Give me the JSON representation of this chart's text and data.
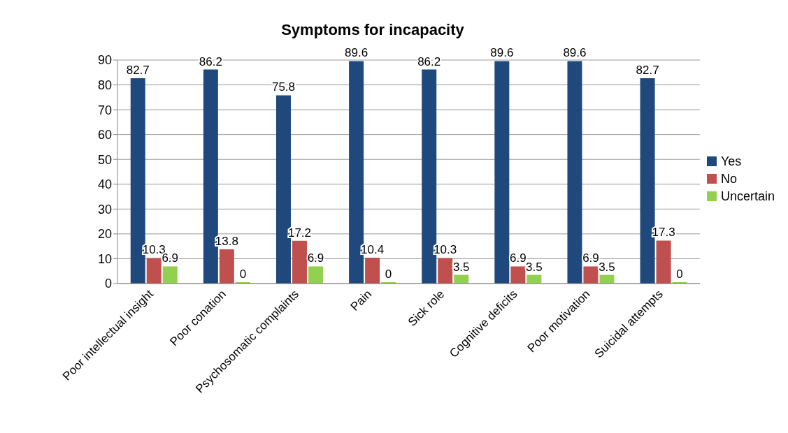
{
  "chart_data": {
    "type": "bar",
    "title": "Symptoms for incapacity",
    "categories": [
      "Poor intellectual insight",
      "Poor conation",
      "Psychosomatic complaints",
      "Pain",
      "Sick role",
      "Cognitive deficits",
      "Poor motivation",
      "Suicidal attempts"
    ],
    "series": [
      {
        "name": "Yes",
        "color": "#1f497d",
        "values": [
          82.7,
          86.2,
          75.8,
          89.6,
          86.2,
          89.6,
          89.6,
          82.7
        ]
      },
      {
        "name": "No",
        "color": "#c0504d",
        "values": [
          10.3,
          13.8,
          17.2,
          10.4,
          10.3,
          6.9,
          6.9,
          17.3
        ]
      },
      {
        "name": "Uncertain",
        "color": "#92d050",
        "values": [
          6.9,
          0,
          6.9,
          0,
          3.5,
          3.5,
          3.5,
          0
        ]
      }
    ],
    "ylim": [
      0,
      90
    ],
    "yticks": [
      0,
      10,
      20,
      30,
      40,
      50,
      60,
      70,
      80,
      90
    ],
    "grid": "y",
    "legend": "right",
    "data_labels": true
  }
}
